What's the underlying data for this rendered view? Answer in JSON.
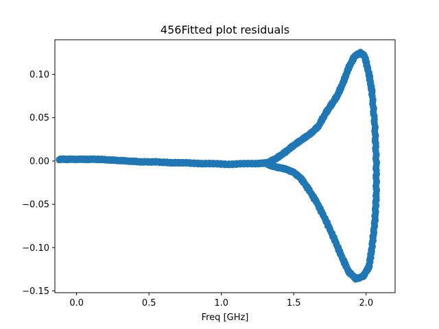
{
  "chart_data": {
    "type": "scatter",
    "title": "456Fitted plot residuals",
    "xlabel": "Freq [GHz]",
    "ylabel": "",
    "xlim": [
      -0.15,
      2.2
    ],
    "ylim": [
      -0.152,
      0.14
    ],
    "xticks": [
      0.0,
      0.5,
      1.0,
      1.5,
      2.0
    ],
    "xtick_labels": [
      "0.0",
      "0.5",
      "1.0",
      "1.5",
      "2.0"
    ],
    "yticks": [
      -0.15,
      -0.1,
      -0.05,
      0.0,
      0.05,
      0.1
    ],
    "ytick_labels": [
      "−0.15",
      "−0.10",
      "−0.05",
      "0.00",
      "0.05",
      "0.10"
    ],
    "grid": false,
    "marker_color": "#1f77b4",
    "series": [
      {
        "name": "residuals",
        "trace": [
          [
            -0.12,
            0.002
          ],
          [
            -0.05,
            0.002
          ],
          [
            0.05,
            0.002
          ],
          [
            0.15,
            0.002
          ],
          [
            0.25,
            0.001
          ],
          [
            0.35,
            0.0
          ],
          [
            0.45,
            -0.001
          ],
          [
            0.55,
            -0.001
          ],
          [
            0.65,
            -0.002
          ],
          [
            0.75,
            -0.002
          ],
          [
            0.85,
            -0.003
          ],
          [
            0.95,
            -0.003
          ],
          [
            1.05,
            -0.004
          ],
          [
            1.15,
            -0.003
          ],
          [
            1.25,
            -0.003
          ],
          [
            1.32,
            -0.002
          ],
          [
            1.38,
            0.003
          ],
          [
            1.44,
            0.01
          ],
          [
            1.5,
            0.018
          ],
          [
            1.56,
            0.025
          ],
          [
            1.62,
            0.032
          ],
          [
            1.67,
            0.04
          ],
          [
            1.72,
            0.055
          ],
          [
            1.76,
            0.065
          ],
          [
            1.8,
            0.075
          ],
          [
            1.84,
            0.09
          ],
          [
            1.88,
            0.108
          ],
          [
            1.92,
            0.121
          ],
          [
            1.96,
            0.125
          ],
          [
            1.99,
            0.121
          ],
          [
            2.02,
            0.1
          ],
          [
            2.04,
            0.08
          ],
          [
            2.06,
            0.04
          ],
          [
            2.07,
            0.0
          ],
          [
            2.07,
            -0.04
          ],
          [
            2.06,
            -0.07
          ],
          [
            2.04,
            -0.1
          ],
          [
            2.02,
            -0.122
          ],
          [
            1.98,
            -0.133
          ],
          [
            1.93,
            -0.136
          ],
          [
            1.88,
            -0.128
          ],
          [
            1.83,
            -0.11
          ],
          [
            1.78,
            -0.09
          ],
          [
            1.72,
            -0.068
          ],
          [
            1.66,
            -0.048
          ],
          [
            1.6,
            -0.032
          ],
          [
            1.55,
            -0.02
          ],
          [
            1.5,
            -0.013
          ],
          [
            1.44,
            -0.009
          ],
          [
            1.38,
            -0.007
          ],
          [
            1.32,
            -0.004
          ]
        ]
      }
    ]
  }
}
